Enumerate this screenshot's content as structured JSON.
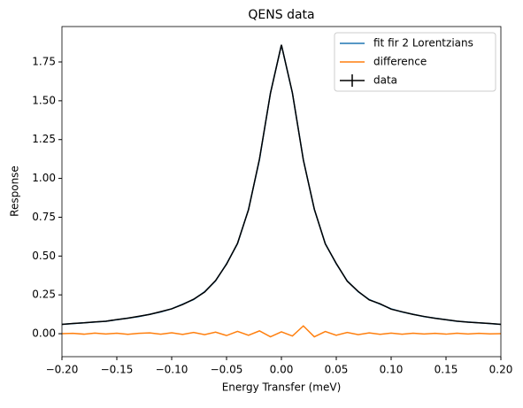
{
  "chart_data": {
    "type": "line",
    "title": "QENS data",
    "x_label": "Energy Transfer (meV)",
    "y_label": "Response",
    "x": [
      -0.2,
      -0.19,
      -0.18,
      -0.17,
      -0.16,
      -0.15,
      -0.14,
      -0.13,
      -0.12,
      -0.11,
      -0.1,
      -0.09,
      -0.08,
      -0.07,
      -0.06,
      -0.05,
      -0.04,
      -0.03,
      -0.02,
      -0.01,
      0,
      0.01,
      0.02,
      0.03,
      0.04,
      0.05,
      0.06,
      0.07,
      0.08,
      0.09,
      0.1,
      0.11,
      0.12,
      0.13,
      0.14,
      0.15,
      0.16,
      0.17,
      0.18,
      0.19,
      0.2
    ],
    "series": [
      {
        "name": "fit fir 2 Lorentzians",
        "color": "#1f77b4",
        "values": [
          0.06,
          0.065,
          0.07,
          0.075,
          0.08,
          0.09,
          0.1,
          0.11,
          0.125,
          0.14,
          0.16,
          0.19,
          0.22,
          0.27,
          0.34,
          0.45,
          0.58,
          0.8,
          1.12,
          1.55,
          1.86,
          1.55,
          1.12,
          0.8,
          0.58,
          0.45,
          0.34,
          0.27,
          0.22,
          0.19,
          0.16,
          0.14,
          0.125,
          0.11,
          0.1,
          0.09,
          0.08,
          0.075,
          0.07,
          0.065,
          0.06
        ]
      },
      {
        "name": "difference",
        "color": "#ff7f0e",
        "values": [
          0,
          0.002,
          -0.003,
          0.004,
          -0.002,
          0.003,
          -0.004,
          0.002,
          0.005,
          -0.003,
          0.006,
          -0.005,
          0.008,
          -0.006,
          0.01,
          -0.012,
          0.015,
          -0.01,
          0.018,
          -0.02,
          0.012,
          -0.015,
          0.05,
          -0.02,
          0.014,
          -0.01,
          0.008,
          -0.006,
          0.005,
          -0.004,
          0.004,
          -0.003,
          0.003,
          -0.002,
          0.002,
          -0.003,
          0.003,
          -0.002,
          0.002,
          -0.001,
          0
        ]
      },
      {
        "name": "data",
        "color": "#000000",
        "values": [
          0.06,
          0.066,
          0.07,
          0.076,
          0.08,
          0.091,
          0.1,
          0.112,
          0.124,
          0.142,
          0.16,
          0.188,
          0.222,
          0.268,
          0.342,
          0.448,
          0.582,
          0.798,
          1.125,
          1.548,
          1.86,
          1.552,
          1.118,
          0.802,
          0.578,
          0.452,
          0.338,
          0.272,
          0.218,
          0.192,
          0.158,
          0.141,
          0.124,
          0.111,
          0.099,
          0.09,
          0.081,
          0.074,
          0.07,
          0.066,
          0.06
        ]
      }
    ],
    "xlim": [
      -0.2,
      0.2
    ],
    "xticks": [
      {
        "value": -0.2,
        "label": "−0.20"
      },
      {
        "value": -0.15,
        "label": "−0.15"
      },
      {
        "value": -0.1,
        "label": "−0.10"
      },
      {
        "value": -0.05,
        "label": "−0.05"
      },
      {
        "value": 0,
        "label": "0.00"
      },
      0.05,
      {
        "value": 0.1,
        "label": "0.10"
      },
      0.15,
      {
        "value": 0.2,
        "label": "0.20"
      }
    ],
    "ylim": [
      -0.148,
      1.978
    ],
    "yticks": [
      {
        "value": 0,
        "label": "0.00"
      },
      0.25,
      {
        "value": 0.5,
        "label": "0.50"
      },
      0.75,
      {
        "value": 1,
        "label": "1.00"
      },
      1.25,
      {
        "value": 1.5,
        "label": "1.50"
      },
      1.75
    ],
    "legend": "upper right"
  }
}
